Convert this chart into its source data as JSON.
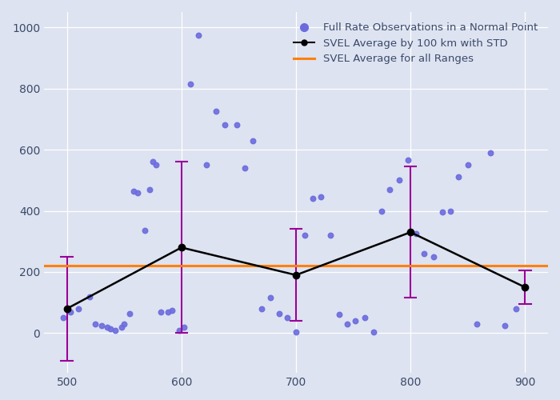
{
  "scatter_x": [
    497,
    503,
    510,
    520,
    525,
    530,
    535,
    538,
    542,
    548,
    550,
    555,
    558,
    562,
    568,
    572,
    575,
    578,
    582,
    588,
    592,
    598,
    602,
    608,
    615,
    622,
    630,
    638,
    648,
    655,
    662,
    670,
    678,
    685,
    692,
    700,
    708,
    715,
    722,
    730,
    738,
    745,
    752,
    760,
    768,
    775,
    782,
    790,
    798,
    805,
    812,
    820,
    828,
    835,
    842,
    850,
    858,
    870,
    882,
    892
  ],
  "scatter_y": [
    50,
    68,
    80,
    120,
    30,
    25,
    20,
    15,
    10,
    20,
    30,
    65,
    465,
    460,
    335,
    470,
    560,
    550,
    70,
    68,
    75,
    10,
    20,
    815,
    975,
    550,
    725,
    680,
    680,
    540,
    630,
    80,
    115,
    65,
    50,
    5,
    320,
    440,
    445,
    320,
    60,
    30,
    40,
    50,
    5,
    400,
    470,
    500,
    565,
    325,
    260,
    250,
    395,
    400,
    510,
    550,
    30,
    590,
    25,
    80
  ],
  "avg_x": [
    500,
    600,
    700,
    800,
    900
  ],
  "avg_y": [
    80,
    280,
    190,
    330,
    150
  ],
  "avg_err": [
    170,
    280,
    150,
    215,
    55
  ],
  "overall_avg": 220,
  "scatter_color": "#6b6bde",
  "avg_line_color": "#000000",
  "avg_marker_color": "#000000",
  "err_color": "#990099",
  "overall_color": "#ff7f0e",
  "plot_bg_color": "#dde3f0",
  "fig_bg_color": "#dde3f0",
  "xlim": [
    480,
    920
  ],
  "ylim": [
    -130,
    1050
  ],
  "xticks": [
    500,
    600,
    700,
    800,
    900
  ],
  "yticks": [
    0,
    200,
    400,
    600,
    800,
    1000
  ],
  "legend_scatter": "Full Rate Observations in a Normal Point",
  "legend_avg": "SVEL Average by 100 km with STD",
  "legend_overall": "SVEL Average for all Ranges",
  "legend_fontsize": 9.5
}
